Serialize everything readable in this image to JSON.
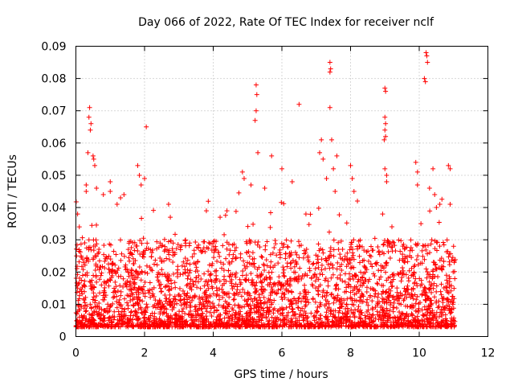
{
  "chart_data": {
    "type": "scatter",
    "title": "Day 066 of 2022, Rate Of TEC Index for receiver nclf",
    "xlabel": "GPS time / hours",
    "ylabel": "ROTI / TECUs",
    "xlim": [
      0,
      12
    ],
    "ylim": [
      0,
      0.09
    ],
    "xticks": [
      0,
      2,
      4,
      6,
      8,
      10,
      12
    ],
    "xtick_labels": [
      "0",
      "2",
      "4",
      "6",
      "8",
      "10",
      "12"
    ],
    "yticks": [
      0,
      0.01,
      0.02,
      0.03,
      0.04,
      0.05,
      0.06,
      0.07,
      0.08,
      0.09
    ],
    "ytick_labels": [
      "0",
      "0.01",
      "0.02",
      "0.03",
      "0.04",
      "0.05",
      "0.06",
      "0.07",
      "0.08",
      "0.09"
    ],
    "grid": true,
    "marker": "+",
    "color": "#ff0000",
    "series": [
      {
        "name": "ROTI",
        "x_range": [
          0,
          11.05
        ],
        "description_values": {
          "bulk_range": [
            0.003,
            0.03
          ],
          "typical_median": 0.009
        },
        "points": [
          [
            0.05,
            0.038
          ],
          [
            0.1,
            0.034
          ],
          [
            0.15,
            0.025
          ],
          [
            0.3,
            0.047
          ],
          [
            0.3,
            0.045
          ],
          [
            0.35,
            0.057
          ],
          [
            0.38,
            0.068
          ],
          [
            0.4,
            0.071
          ],
          [
            0.42,
            0.064
          ],
          [
            0.44,
            0.066
          ],
          [
            0.5,
            0.056
          ],
          [
            0.52,
            0.055
          ],
          [
            0.55,
            0.053
          ],
          [
            0.6,
            0.046
          ],
          [
            0.8,
            0.044
          ],
          [
            1.0,
            0.048
          ],
          [
            1.0,
            0.045
          ],
          [
            1.2,
            0.041
          ],
          [
            1.3,
            0.043
          ],
          [
            1.4,
            0.044
          ],
          [
            1.8,
            0.053
          ],
          [
            1.85,
            0.05
          ],
          [
            1.9,
            0.047
          ],
          [
            2.05,
            0.065
          ],
          [
            2.0,
            0.049
          ],
          [
            2.7,
            0.041
          ],
          [
            2.75,
            0.037
          ],
          [
            3.8,
            0.039
          ],
          [
            4.2,
            0.037
          ],
          [
            4.4,
            0.039
          ],
          [
            4.85,
            0.051
          ],
          [
            4.9,
            0.049
          ],
          [
            5.1,
            0.047
          ],
          [
            5.25,
            0.078
          ],
          [
            5.27,
            0.075
          ],
          [
            5.25,
            0.07
          ],
          [
            5.22,
            0.067
          ],
          [
            5.3,
            0.057
          ],
          [
            5.5,
            0.046
          ],
          [
            5.7,
            0.056
          ],
          [
            6.0,
            0.052
          ],
          [
            6.3,
            0.048
          ],
          [
            6.5,
            0.072
          ],
          [
            6.7,
            0.038
          ],
          [
            7.1,
            0.057
          ],
          [
            7.15,
            0.061
          ],
          [
            7.2,
            0.055
          ],
          [
            7.3,
            0.049
          ],
          [
            7.4,
            0.085
          ],
          [
            7.42,
            0.083
          ],
          [
            7.4,
            0.082
          ],
          [
            7.4,
            0.071
          ],
          [
            7.45,
            0.061
          ],
          [
            7.5,
            0.052
          ],
          [
            7.55,
            0.045
          ],
          [
            7.6,
            0.056
          ],
          [
            8.0,
            0.053
          ],
          [
            8.05,
            0.049
          ],
          [
            8.1,
            0.045
          ],
          [
            8.2,
            0.042
          ],
          [
            9.0,
            0.077
          ],
          [
            9.02,
            0.076
          ],
          [
            9.0,
            0.068
          ],
          [
            9.02,
            0.066
          ],
          [
            9.0,
            0.064
          ],
          [
            9.02,
            0.062
          ],
          [
            8.98,
            0.061
          ],
          [
            9.0,
            0.052
          ],
          [
            9.05,
            0.05
          ],
          [
            9.05,
            0.048
          ],
          [
            9.9,
            0.054
          ],
          [
            9.95,
            0.051
          ],
          [
            9.95,
            0.047
          ],
          [
            10.05,
            0.035
          ],
          [
            10.15,
            0.08
          ],
          [
            10.18,
            0.079
          ],
          [
            10.2,
            0.088
          ],
          [
            10.22,
            0.087
          ],
          [
            10.24,
            0.085
          ],
          [
            10.3,
            0.046
          ],
          [
            10.4,
            0.052
          ],
          [
            10.45,
            0.044
          ],
          [
            10.5,
            0.04
          ],
          [
            10.6,
            0.041
          ],
          [
            10.85,
            0.053
          ],
          [
            10.9,
            0.052
          ],
          [
            10.9,
            0.041
          ],
          [
            11.0,
            0.028
          ]
        ]
      }
    ]
  }
}
